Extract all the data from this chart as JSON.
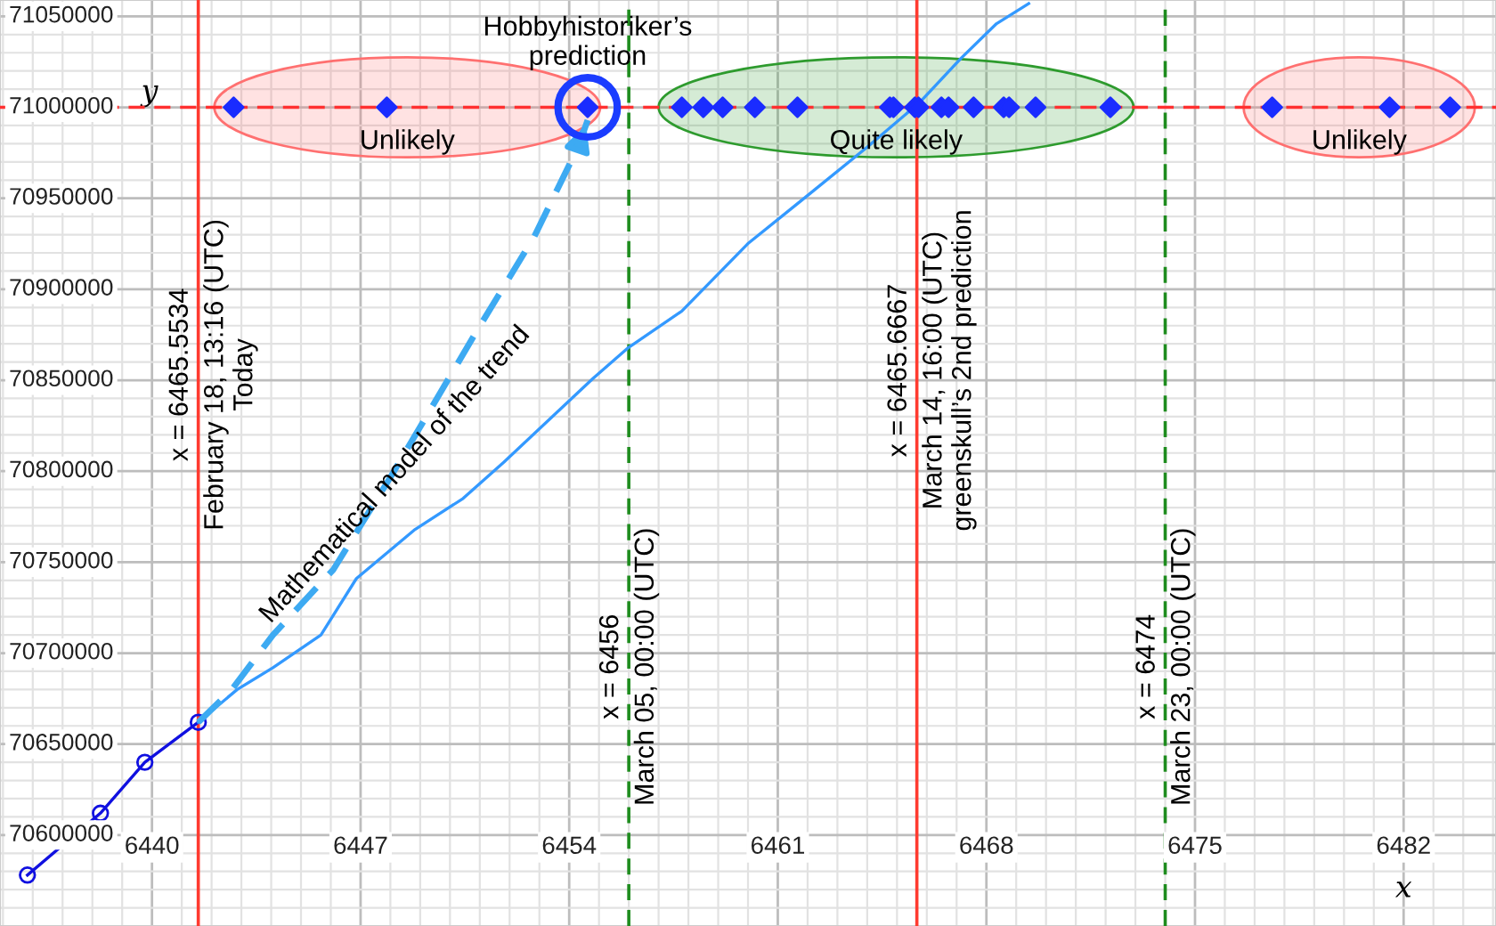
{
  "chart_data": {
    "type": "scatter",
    "xlabel": "x",
    "ylabel": "y",
    "xlim": [
      6434.9,
      6485.1
    ],
    "ylim": [
      70550000,
      71059000
    ],
    "xticks": [
      6440,
      6447,
      6454,
      6461,
      6468,
      6475,
      6482
    ],
    "yticks": [
      70600000,
      70650000,
      70700000,
      70750000,
      70800000,
      70850000,
      70900000,
      70950000,
      71000000,
      71050000
    ],
    "grid": true,
    "series": [
      {
        "marker": "diamond",
        "color": "#1a2cff",
        "x": [
          6442.74,
          6447.88,
          6454.62,
          6457.78,
          6458.5,
          6459.15,
          6460.23,
          6461.66,
          6464.76,
          6464.88,
          6465.6,
          6465.72,
          6466.49,
          6466.73,
          6467.57,
          6468.58,
          6468.76,
          6469.65,
          6472.16,
          6477.59,
          6481.53,
          6483.56
        ],
        "values": [
          71000000,
          71000000,
          71000000,
          71000000,
          71000000,
          71000000,
          71000000,
          71000000,
          71000000,
          71000000,
          71000000,
          71000000,
          71000000,
          71000000,
          71000000,
          71000000,
          71000000,
          71000000,
          71000000,
          71000000,
          71000000,
          71000000
        ]
      },
      {
        "type": "line",
        "marker": "circle",
        "color": "#1010e0",
        "x": [
          6435.82,
          6438.27,
          6439.76,
          6441.5534
        ],
        "values": [
          70578000,
          70612000,
          70640000,
          70662000
        ]
      },
      {
        "type": "line",
        "marker": "none",
        "color": "#3399ff",
        "x": [
          6441.5534,
          6442.86,
          6444.06,
          6445.67,
          6446.86,
          6448.83,
          6450.44,
          6451.81,
          6454.8,
          6455.99,
          6457.78,
          6459.99,
          6461.96,
          6463.99,
          6465.78,
          6467.15,
          6468.34,
          6469.42
        ],
        "values": [
          70662000,
          70680000,
          70692000,
          70710000,
          70741000,
          70768000,
          70785000,
          70805000,
          70851000,
          70868000,
          70888000,
          70925000,
          70951000,
          70978000,
          71003000,
          71027000,
          71046000,
          71057000
        ]
      },
      {
        "type": "line",
        "marker": "none",
        "line_style": "dashed",
        "color": "#3daaf2",
        "x": [
          6441.5534,
          6442.68,
          6444.06,
          6446.09,
          6448.05,
          6450.86,
          6452.83,
          6454.32,
          6454.62
        ],
        "values": [
          70662000,
          70680000,
          70710000,
          70746000,
          70798000,
          70876000,
          70929000,
          70979000,
          70993000
        ]
      }
    ],
    "ref_lines": [
      {
        "axis": "y",
        "value": 71000000,
        "color": "#ff3030",
        "line_style": "dashed"
      },
      {
        "axis": "x",
        "value": 6441.5534,
        "color": "#ff3b30",
        "line_style": "solid"
      },
      {
        "axis": "x",
        "value": 6456,
        "label": "x = 6456\nMarch 05, 00:00 (UTC)",
        "color": "#1e8c1e",
        "line_style": "dashed"
      },
      {
        "axis": "x",
        "value": 6465.6667,
        "label": "x = 6465.6667\nMarch 14, 16:00 (UTC)\ngreenskull’s 2nd prediction",
        "color": "#ff3b30",
        "line_style": "solid"
      },
      {
        "axis": "x",
        "value": 6474,
        "label": "x = 6474\nMarch 23, 00:00 (UTC)",
        "color": "#1e8c1e",
        "line_style": "dashed"
      }
    ],
    "bands": [
      {
        "axis": "x",
        "from": 6442.09,
        "to": 6455.04,
        "label": "Unlikely",
        "color": "#ff7070"
      },
      {
        "axis": "x",
        "from": 6457.0,
        "to": 6472.94,
        "label": "Quite likely",
        "color": "#2e9b2e"
      },
      {
        "axis": "x",
        "from": 6476.63,
        "to": 6484.39,
        "label": "Unlikely",
        "color": "#ff7070"
      }
    ],
    "annotations": [
      {
        "text": "Hobbyhistoriker’s\nprediction",
        "x": 6454.62,
        "y": 71000000
      },
      {
        "text": "Mathematical model of the trend",
        "x": 6448.83,
        "y": 70768000
      },
      {
        "text": "x = 6465.5534\nFebruary 18, 13:16 (UTC)\nToday",
        "x": 6441.5534,
        "y": 70853000
      }
    ]
  }
}
